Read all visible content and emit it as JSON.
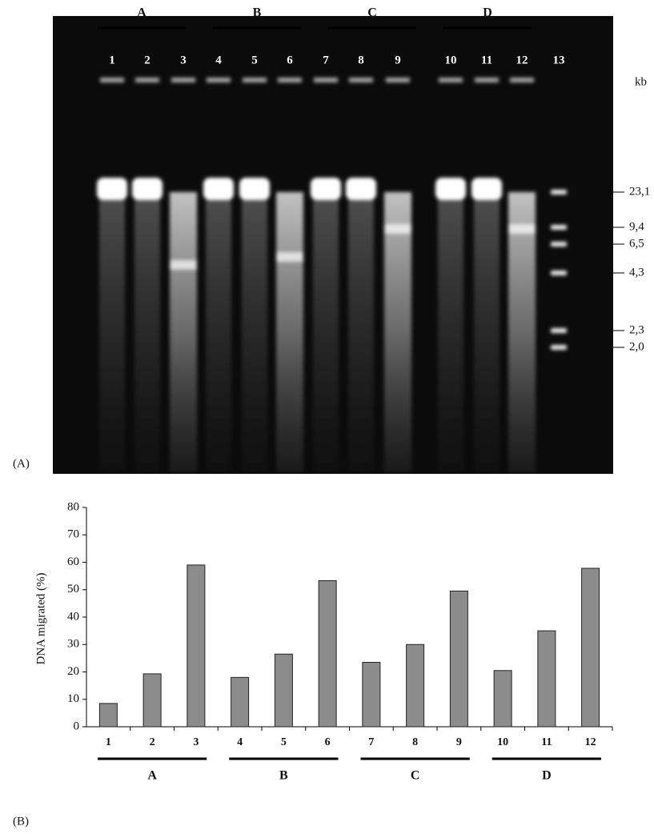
{
  "gel": {
    "panel_label": "(A)",
    "unit": "kb",
    "groups": [
      "A",
      "B",
      "C",
      "D"
    ],
    "lanes": [
      "1",
      "2",
      "3",
      "4",
      "5",
      "6",
      "7",
      "8",
      "9",
      "10",
      "11",
      "12",
      "13"
    ],
    "markers": [
      "23,1",
      "9,4",
      "6,5",
      "4,3",
      "2,3",
      "2,0"
    ]
  },
  "chart_data": {
    "type": "bar",
    "panel_label": "(B)",
    "y_label": "DNA migrated (%)",
    "categories": [
      "1",
      "2",
      "3",
      "4",
      "5",
      "6",
      "7",
      "8",
      "9",
      "10",
      "11",
      "12"
    ],
    "values": [
      8.5,
      19.3,
      59,
      18,
      26.5,
      53.3,
      23.5,
      30,
      49.5,
      20.5,
      35,
      57.8
    ],
    "color": "#8c8c8c",
    "groups": [
      "A",
      "B",
      "C",
      "D"
    ],
    "ylim": [
      0,
      80
    ],
    "yticks": [
      0,
      10,
      20,
      30,
      40,
      50,
      60,
      70,
      80
    ]
  }
}
